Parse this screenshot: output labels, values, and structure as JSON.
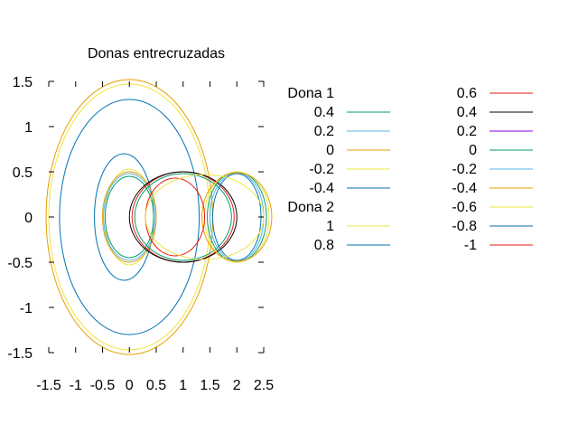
{
  "chart_data": {
    "type": "line",
    "title": "Donas entrecruzadas",
    "xlim": [
      -1.5,
      2.5
    ],
    "ylim": [
      -1.5,
      1.5
    ],
    "x_ticks": [
      "-1.5",
      "-1",
      "-0.5",
      "0",
      "0.5",
      "1",
      "1.5",
      "2",
      "2.5"
    ],
    "y_ticks": [
      "1.5",
      "1",
      "0.5",
      "0",
      "-0.5",
      "-1",
      "-1.5"
    ],
    "grid": false,
    "legend_position": "right",
    "groups": [
      {
        "name": "Dona 1",
        "levels": [
          {
            "label": "0.4",
            "color": "#009e73"
          },
          {
            "label": "0.2",
            "color": "#56b4e9"
          },
          {
            "label": "0",
            "color": "#e69f00"
          },
          {
            "label": "-0.2",
            "color": "#f0e442"
          },
          {
            "label": "-0.4",
            "color": "#0072b2"
          }
        ]
      },
      {
        "name": "Dona 2",
        "levels": [
          {
            "label": "1",
            "color": "#f0e442"
          },
          {
            "label": "0.8",
            "color": "#0072b2"
          }
        ]
      }
    ],
    "legend_col2": [
      {
        "label": "0.6",
        "color": "#e51e10"
      },
      {
        "label": "0.4",
        "color": "#000000"
      },
      {
        "label": "0.2",
        "color": "#9400d3"
      },
      {
        "label": "0",
        "color": "#009e73"
      },
      {
        "label": "-0.2",
        "color": "#56b4e9"
      },
      {
        "label": "-0.4",
        "color": "#e69f00"
      },
      {
        "label": "-0.6",
        "color": "#f0e442"
      },
      {
        "label": "-0.8",
        "color": "#0072b2"
      },
      {
        "label": "-1",
        "color": "#e51e10"
      }
    ],
    "curves": [
      {
        "cx": 0,
        "cy": 0,
        "rx": 1.55,
        "ry": 1.52,
        "color": "#e69f00"
      },
      {
        "cx": 0,
        "cy": 0,
        "rx": 1.5,
        "ry": 1.47,
        "color": "#f0e442"
      },
      {
        "cx": 0,
        "cy": 0,
        "rx": 1.3,
        "ry": 1.3,
        "color": "#0072b2"
      },
      {
        "cx": -0.1,
        "cy": 0,
        "rx": 0.55,
        "ry": 0.7,
        "color": "#0072b2"
      },
      {
        "cx": 0,
        "cy": 0,
        "rx": 0.45,
        "ry": 0.53,
        "color": "#f0e442"
      },
      {
        "cx": 0,
        "cy": 0,
        "rx": 0.5,
        "ry": 0.5,
        "color": "#e69f00"
      },
      {
        "cx": 0,
        "cy": 0,
        "rx": 0.48,
        "ry": 0.48,
        "color": "#56b4e9"
      },
      {
        "cx": 0,
        "cy": 0,
        "rx": 0.45,
        "ry": 0.45,
        "color": "#009e73"
      },
      {
        "cx": 1.0,
        "cy": 0,
        "rx": 0.9,
        "ry": 0.48,
        "color": "#009e73"
      },
      {
        "cx": 1.0,
        "cy": 0,
        "rx": 0.95,
        "ry": 0.5,
        "color": "#e51e10"
      },
      {
        "cx": 1.0,
        "cy": 0,
        "rx": 1.0,
        "ry": 0.5,
        "color": "#000000"
      },
      {
        "cx": 2.0,
        "cy": 0,
        "rx": 0.55,
        "ry": 0.5,
        "color": "#009e73"
      },
      {
        "cx": 2.0,
        "cy": 0,
        "rx": 0.5,
        "ry": 0.49,
        "color": "#56b4e9"
      },
      {
        "cx": 2.0,
        "cy": 0,
        "rx": 0.6,
        "ry": 0.5,
        "color": "#f0e442"
      },
      {
        "cx": 2.0,
        "cy": 0,
        "rx": 0.65,
        "ry": 0.49,
        "color": "#e69f00"
      },
      {
        "cx": 2.0,
        "cy": 0,
        "rx": 0.45,
        "ry": 0.48,
        "color": "#0072b2"
      },
      {
        "cx": 0.85,
        "cy": 0,
        "rx": 0.55,
        "ry": 0.43,
        "color": "#e51e10"
      },
      {
        "cx": 1.4,
        "cy": 0,
        "rx": 1.1,
        "ry": 0.47,
        "color": "#f0e442"
      }
    ]
  }
}
